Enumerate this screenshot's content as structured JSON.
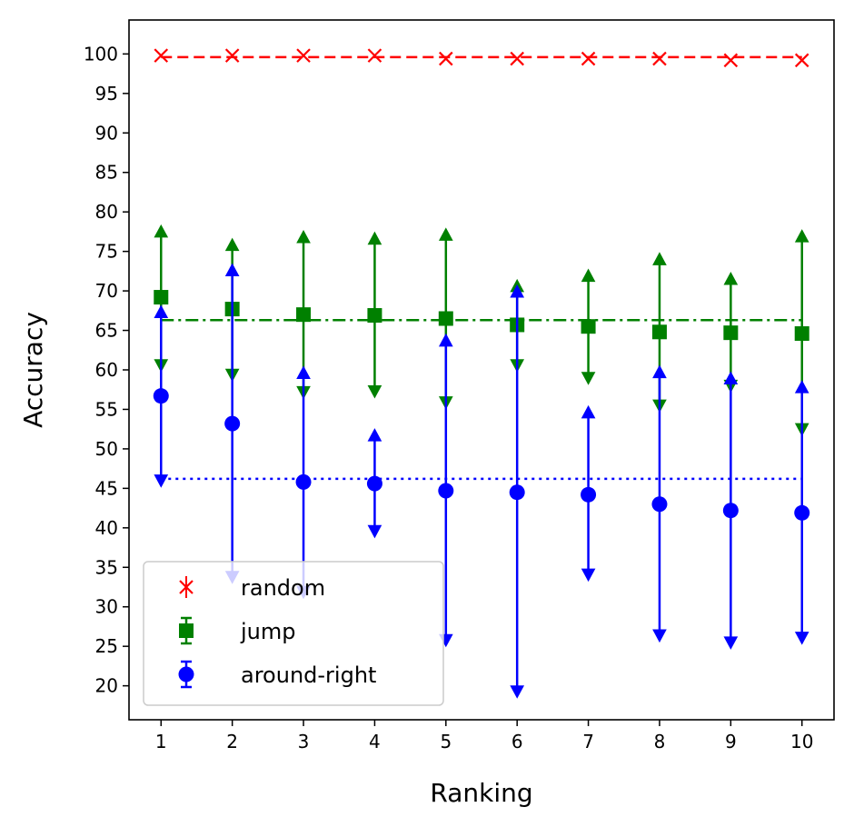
{
  "chart_data": {
    "type": "scatter",
    "title": "",
    "xlabel": "Ranking",
    "ylabel": "Accuracy",
    "x": [
      1,
      2,
      3,
      4,
      5,
      6,
      7,
      8,
      9,
      10
    ],
    "xticks": [
      "1",
      "2",
      "3",
      "4",
      "5",
      "6",
      "7",
      "8",
      "9",
      "10"
    ],
    "yticks": [
      "20",
      "25",
      "30",
      "35",
      "40",
      "45",
      "50",
      "55",
      "60",
      "65",
      "70",
      "75",
      "80",
      "85",
      "90",
      "95",
      "100"
    ],
    "xlim": [
      0.55,
      10.45
    ],
    "ylim": [
      15.7,
      104.3
    ],
    "grid": false,
    "legend_position": "lower-left",
    "series": [
      {
        "name": "random",
        "color": "#ff0000",
        "marker": "x",
        "values": [
          99.8,
          99.8,
          99.8,
          99.8,
          99.4,
          99.4,
          99.4,
          99.4,
          99.2,
          99.2
        ],
        "error_upper": [
          99.8,
          99.8,
          99.8,
          99.8,
          99.4,
          99.4,
          99.4,
          99.4,
          99.2,
          99.2
        ],
        "error_lower": [
          99.8,
          99.8,
          99.8,
          99.8,
          99.4,
          99.4,
          99.4,
          99.4,
          99.2,
          99.2
        ],
        "mean": 99.6,
        "mean_line_style": "dashed"
      },
      {
        "name": "jump",
        "color": "#008000",
        "marker": "square",
        "values": [
          69.2,
          67.7,
          67.0,
          66.9,
          66.5,
          65.7,
          65.5,
          64.8,
          64.7,
          64.6
        ],
        "error_upper": [
          77.5,
          75.8,
          76.8,
          76.6,
          77.1,
          70.6,
          71.9,
          74.0,
          71.5,
          76.9
        ],
        "error_lower": [
          60.6,
          59.4,
          57.2,
          57.3,
          55.9,
          60.6,
          59.0,
          55.5,
          58.0,
          52.5
        ],
        "mean": 66.3,
        "mean_line_style": "dashdot"
      },
      {
        "name": "around-right",
        "color": "#0000ff",
        "marker": "circle",
        "values": [
          56.7,
          53.2,
          45.8,
          45.6,
          44.7,
          44.5,
          44.2,
          43.0,
          42.2,
          41.9
        ],
        "error_upper": [
          67.3,
          72.6,
          59.6,
          51.7,
          63.7,
          69.9,
          54.6,
          59.7,
          58.9,
          57.8
        ],
        "error_lower": [
          46.0,
          33.8,
          31.9,
          39.6,
          25.8,
          19.3,
          34.1,
          26.4,
          25.5,
          26.1
        ],
        "mean": 46.2,
        "mean_line_style": "dotted"
      }
    ]
  }
}
